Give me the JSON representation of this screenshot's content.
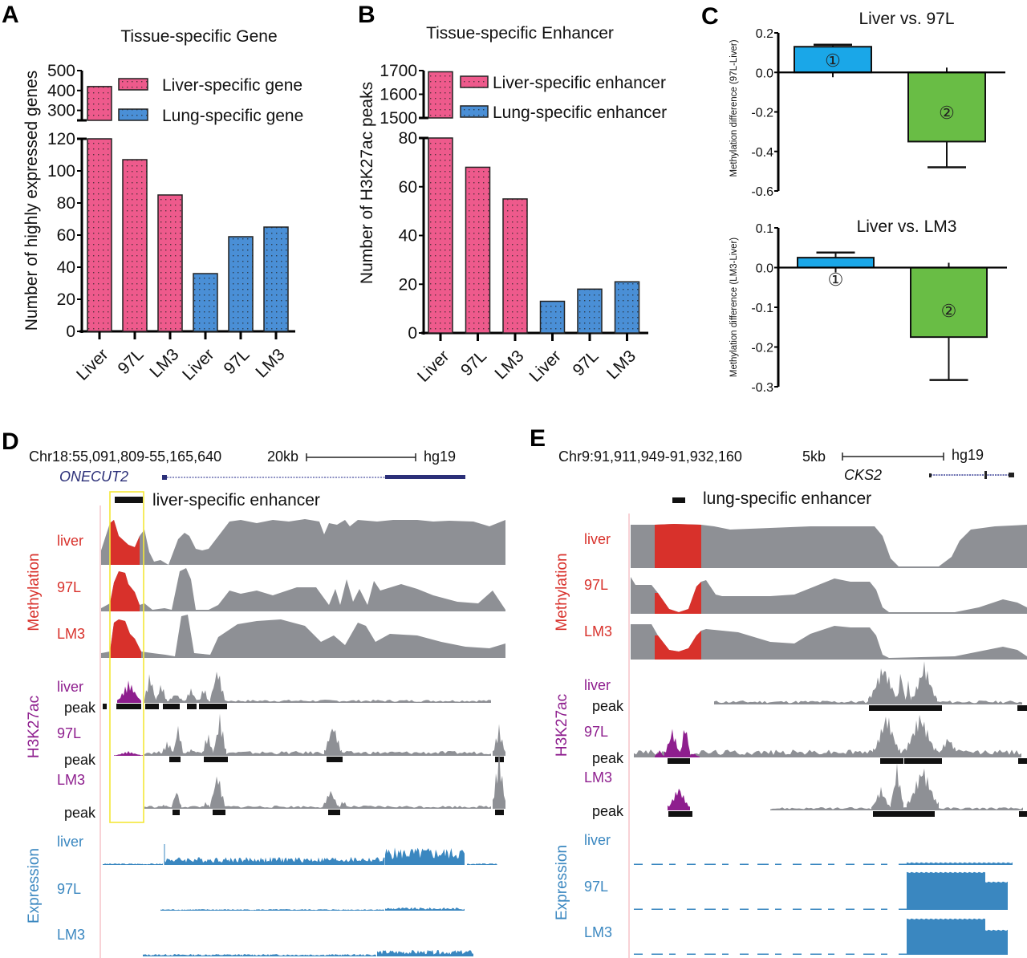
{
  "figure": {
    "panel_labels": [
      "A",
      "B",
      "C",
      "D",
      "E"
    ],
    "colors": {
      "liver_bar": "#ee5a8c",
      "lung_bar": "#4a8fd6",
      "c_bar1": "#1aa7e8",
      "c_bar2": "#69bd45",
      "methylation": "#d8312b",
      "h3k27ac": "#8e1e8e",
      "expression": "#3a87c0",
      "track_gray": "#8e9095",
      "highlight_box": "#f3e838",
      "gene_model": "#2b2f78"
    }
  },
  "chart_data": [
    {
      "id": "A",
      "type": "bar",
      "title": "Tissue-specific Gene",
      "ylabel": "Number of highly expressed genes",
      "xlabel": "",
      "broken_axis": true,
      "ylim_lower": [
        0,
        120
      ],
      "ylim_upper": [
        250,
        500
      ],
      "yticks_lower": [
        "0",
        "20",
        "40",
        "60",
        "80",
        "100",
        "120"
      ],
      "yticks_upper": [
        "300",
        "400",
        "500"
      ],
      "categories": [
        "Liver",
        "97L",
        "LM3",
        "Liver",
        "97L",
        "LM3"
      ],
      "series": [
        {
          "name": "Liver-specific gene",
          "values": [
            420,
            107,
            85,
            null,
            null,
            null
          ]
        },
        {
          "name": "Lung-specific gene",
          "values": [
            null,
            null,
            null,
            36,
            59,
            65
          ]
        }
      ],
      "legend": [
        "Liver-specific gene",
        "Lung-specific gene"
      ],
      "legend_position": "top-right"
    },
    {
      "id": "B",
      "type": "bar",
      "title": "Tissue-specific Enhancer",
      "ylabel": "Number of H3K27ac peaks",
      "xlabel": "",
      "broken_axis": true,
      "ylim_lower": [
        0,
        80
      ],
      "ylim_upper": [
        1500,
        1700
      ],
      "yticks_lower": [
        "0",
        "20",
        "40",
        "60",
        "80"
      ],
      "yticks_upper": [
        "1500",
        "1600",
        "1700"
      ],
      "categories": [
        "Liver",
        "97L",
        "LM3",
        "Liver",
        "97L",
        "LM3"
      ],
      "series": [
        {
          "name": "Liver-specific enhancer",
          "values": [
            1695,
            68,
            55,
            null,
            null,
            null
          ]
        },
        {
          "name": "Lung-specific enhancer",
          "values": [
            null,
            null,
            null,
            13,
            18,
            21
          ]
        }
      ],
      "legend": [
        "Liver-specific enhancer",
        "Lung-specific enhancer"
      ],
      "legend_position": "top-right"
    },
    {
      "id": "C-top",
      "type": "bar",
      "title": "Liver vs. 97L",
      "ylabel": "Methylation difference (97L-Liver)",
      "ylim": [
        -0.6,
        0.2
      ],
      "yticks": [
        "0.2",
        "0.0",
        "-0.2",
        "-0.4",
        "-0.6"
      ],
      "categories": [
        "①",
        "②"
      ],
      "values": [
        0.13,
        -0.35
      ],
      "errors": [
        0.01,
        0.13
      ]
    },
    {
      "id": "C-bottom",
      "type": "bar",
      "title": "Liver vs. LM3",
      "ylabel": "Methylation difference (LM3-Liver)",
      "ylim": [
        -0.3,
        0.1
      ],
      "yticks": [
        "0.1",
        "0.0",
        "-0.1",
        "-0.2",
        "-0.3"
      ],
      "categories": [
        "①",
        "②"
      ],
      "values": [
        0.025,
        -0.175
      ],
      "errors": [
        0.013,
        0.108
      ]
    }
  ],
  "browser_D": {
    "locus": "Chr18:55,091,809-55,165,640",
    "scale_label": "20kb",
    "assembly": "hg19",
    "gene": "ONECUT2",
    "annotation": "liver-specific enhancer",
    "groups": [
      {
        "name": "Methylation",
        "tracks": [
          "liver",
          "97L",
          "LM3"
        ]
      },
      {
        "name": "H3K27ac",
        "tracks": [
          "liver",
          "97L",
          "LM3"
        ],
        "peak_label": "peak"
      },
      {
        "name": "Expression",
        "tracks": [
          "liver",
          "97L",
          "LM3"
        ]
      }
    ]
  },
  "browser_E": {
    "locus": "Chr9:91,911,949-91,932,160",
    "scale_label": "5kb",
    "assembly": "hg19",
    "gene": "CKS2",
    "annotation": "lung-specific enhancer",
    "groups": [
      {
        "name": "Methylation",
        "tracks": [
          "liver",
          "97L",
          "LM3"
        ]
      },
      {
        "name": "H3K27ac",
        "tracks": [
          "liver",
          "97L",
          "LM3"
        ],
        "peak_label": "peak"
      },
      {
        "name": "Expression",
        "tracks": [
          "liver",
          "97L",
          "LM3"
        ]
      }
    ]
  }
}
